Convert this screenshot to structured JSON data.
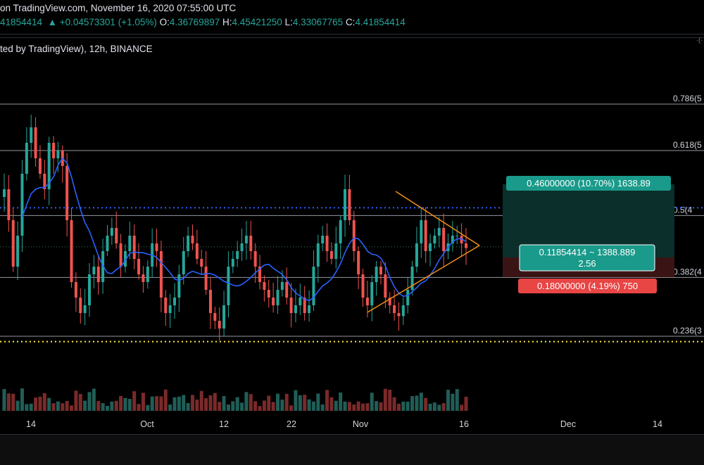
{
  "header": {
    "title_line": "on TradingView.com, November 16, 2020 07:55:00 UTC",
    "ohlc": {
      "price": "41854414",
      "change": "+0.04573301 (+1.05%)",
      "o_label": "O:",
      "o": "4.36769897",
      "h_label": "H:",
      "h": "4.45421250",
      "l_label": "L:",
      "l": "4.33067765",
      "c_label": "C:",
      "c": "4.41854414"
    },
    "symbol_line": "ted by TradingView), 12h, BINANCE",
    "corner_glyph": "·(·"
  },
  "colors": {
    "up": "#26a69a",
    "down": "#ef5350",
    "ma": "#2962ff",
    "triangle": "#f7931a",
    "fib_line": "#9598a1",
    "dotted_blue": "#2962ff",
    "dotted_yellow": "#ffeb3b",
    "profit_zone": "#0b2f2a",
    "loss_zone": "#3a1414"
  },
  "chart_data": {
    "type": "candlestick",
    "interval": "12h",
    "exchange": "BINANCE",
    "ylim": [
      3.6,
      5.7
    ],
    "x_ticks": [
      "14",
      "Oct",
      "12",
      "22",
      "Nov",
      "16",
      "Dec",
      "14"
    ],
    "fib_levels": [
      {
        "label": "0.786(5",
        "value": 5.35
      },
      {
        "label": "0.618(5",
        "value": 5.05
      },
      {
        "label": "0.5(4",
        "value": 4.63
      },
      {
        "label": "0.382(4",
        "value": 4.23
      },
      {
        "label": "0.236(3",
        "value": 3.85
      }
    ],
    "dotted_lines": [
      4.68,
      3.82
    ],
    "last_price": 4.41854414,
    "annotations": {
      "target": "0.46000000 (10.70%) 1638.89",
      "entry_line1": "0.11854414 ~ 1388.889",
      "entry_line2": "2.56",
      "stop": "0.18000000 (4.19%) 750"
    }
  }
}
